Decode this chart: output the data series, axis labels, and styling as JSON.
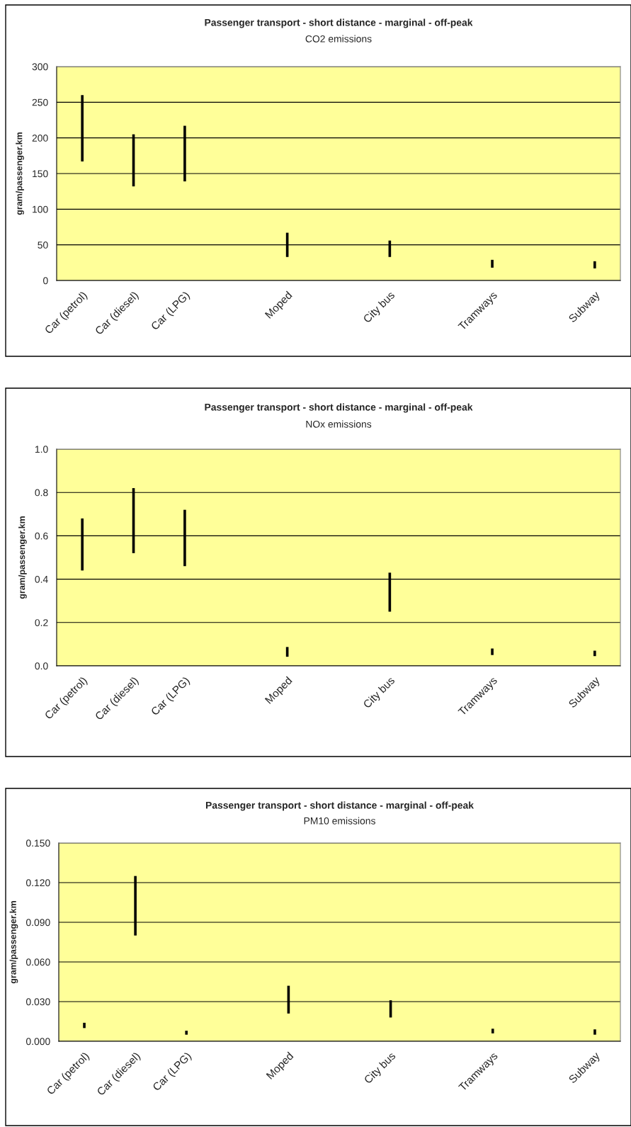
{
  "chart_data": [
    {
      "type": "bar",
      "title": "Passenger transport - short distance - marginal - off-peak",
      "subtitle": "CO2 emissions",
      "ylabel": "gram/passenger.km",
      "categories": [
        "Car (petrol)",
        "Car (diesel)",
        "Car (LPG)",
        null,
        "Moped",
        null,
        "City bus",
        null,
        "Tramways",
        null,
        "Subway"
      ],
      "base": [
        167,
        132,
        139,
        null,
        33,
        null,
        33,
        null,
        18,
        null,
        17
      ],
      "values": [
        93,
        73,
        78,
        null,
        34,
        null,
        23,
        null,
        11,
        null,
        10
      ],
      "color": "#000000",
      "ylim": [
        0,
        300
      ],
      "yticks": [
        0,
        50,
        100,
        150,
        200,
        250,
        300
      ],
      "grid": "y"
    },
    {
      "type": "bar",
      "title": "Passenger transport - short distance - marginal - off-peak",
      "subtitle": "NOx emissions",
      "ylabel": "gram/passenger.km",
      "categories": [
        "Car (petrol)",
        "Car (diesel)",
        "Car (LPG)",
        null,
        "Moped",
        null,
        "City bus",
        null,
        "Tramways",
        null,
        "Subway"
      ],
      "base": [
        0.44,
        0.52,
        0.46,
        null,
        0.042,
        null,
        0.25,
        null,
        0.05,
        null,
        0.045
      ],
      "values": [
        0.24,
        0.3,
        0.26,
        null,
        0.045,
        null,
        0.18,
        null,
        0.03,
        null,
        0.025
      ],
      "color": "#000000",
      "ylim": [
        0,
        1.0
      ],
      "yticks": [
        {
          "value": 0,
          "label": "0.0"
        },
        0.2,
        0.4,
        0.6,
        0.8,
        {
          "value": 1.0,
          "label": "1.0"
        }
      ],
      "grid": "y"
    },
    {
      "type": "bar",
      "title": "Passenger transport - short distance - marginal - off-peak",
      "subtitle": "PM10 emissions",
      "ylabel": "gram/passenger.km",
      "categories": [
        "Car (petrol)",
        "Car (diesel)",
        "Car (LPG)",
        null,
        "Moped",
        null,
        "City bus",
        null,
        "Tramways",
        null,
        "Subway"
      ],
      "base": [
        0.01,
        0.08,
        0.005,
        null,
        0.021,
        null,
        0.018,
        null,
        0.006,
        null,
        0.005
      ],
      "values": [
        0.004,
        0.045,
        0.003,
        null,
        0.021,
        null,
        0.013,
        null,
        0.0035,
        null,
        0.004
      ],
      "color": "#000000",
      "ylim": [
        0,
        0.15
      ],
      "yticks": [
        {
          "value": 0,
          "label": "0.000"
        },
        {
          "value": 0.03,
          "label": "0.030"
        },
        {
          "value": 0.06,
          "label": "0.060"
        },
        {
          "value": 0.09,
          "label": "0.090"
        },
        {
          "value": 0.12,
          "label": "0.120"
        },
        {
          "value": 0.15,
          "label": "0.150"
        }
      ],
      "grid": "y"
    }
  ]
}
